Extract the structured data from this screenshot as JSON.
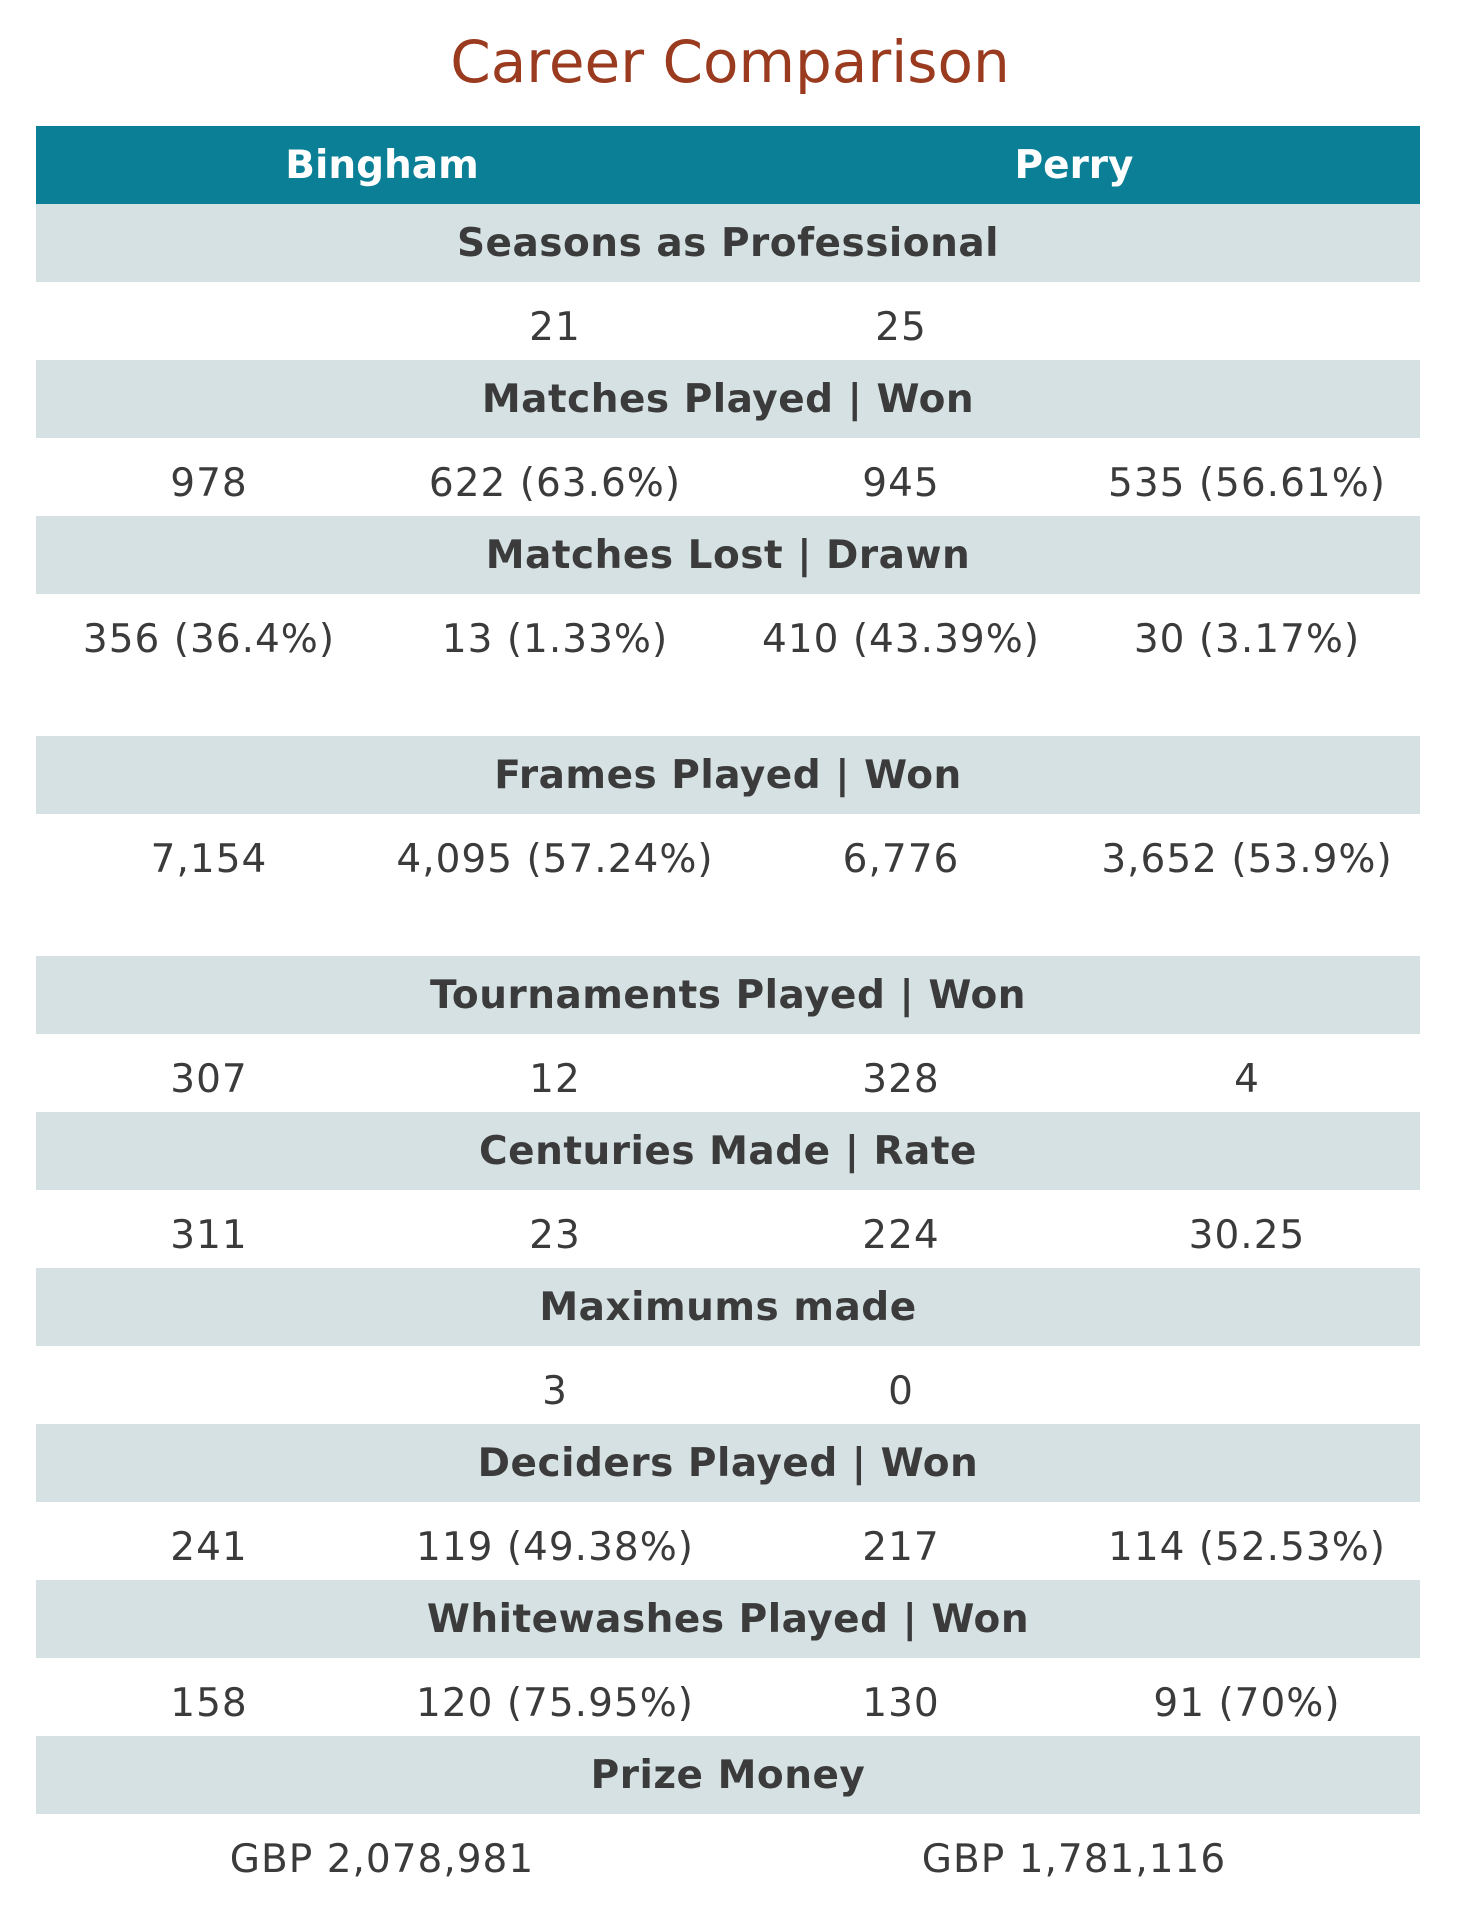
{
  "title": "Career Comparison",
  "players": {
    "left": "Bingham",
    "right": "Perry"
  },
  "sections": [
    {
      "label": "Seasons as Professional",
      "left": [
        "",
        "21"
      ],
      "right": [
        "25",
        ""
      ]
    },
    {
      "label": "Matches Played | Won",
      "left": [
        "978",
        "622 (63.6%)"
      ],
      "right": [
        "945",
        "535 (56.61%)"
      ]
    },
    {
      "label": "Matches Lost | Drawn",
      "left": [
        "356 (36.4%)",
        "13 (1.33%)"
      ],
      "right": [
        "410 (43.39%)",
        "30 (3.17%)"
      ]
    },
    {
      "label": "Frames Played | Won",
      "left": [
        "7,154",
        "4,095 (57.24%)"
      ],
      "right": [
        "6,776",
        "3,652 (53.9%)"
      ]
    },
    {
      "label": "Tournaments Played | Won",
      "left": [
        "307",
        "12"
      ],
      "right": [
        "328",
        "4"
      ]
    },
    {
      "label": "Centuries Made | Rate",
      "left": [
        "311",
        "23"
      ],
      "right": [
        "224",
        "30.25"
      ]
    },
    {
      "label": "Maximums made",
      "left": [
        "",
        "3"
      ],
      "right": [
        "0",
        ""
      ]
    },
    {
      "label": "Deciders Played | Won",
      "left": [
        "241",
        "119 (49.38%)"
      ],
      "right": [
        "217",
        "114 (52.53%)"
      ]
    },
    {
      "label": "Whitewashes Played | Won",
      "left": [
        "158",
        "120 (75.95%)"
      ],
      "right": [
        "130",
        "91 (70%)"
      ]
    },
    {
      "label": "Prize Money",
      "left_total": "GBP 2,078,981",
      "right_total": "GBP 1,781,116"
    }
  ],
  "colors": {
    "title": "#9a3a1e",
    "header_bg": "#0a7f96",
    "label_bg": "#d6e1e3",
    "text": "#3b3b3b"
  }
}
